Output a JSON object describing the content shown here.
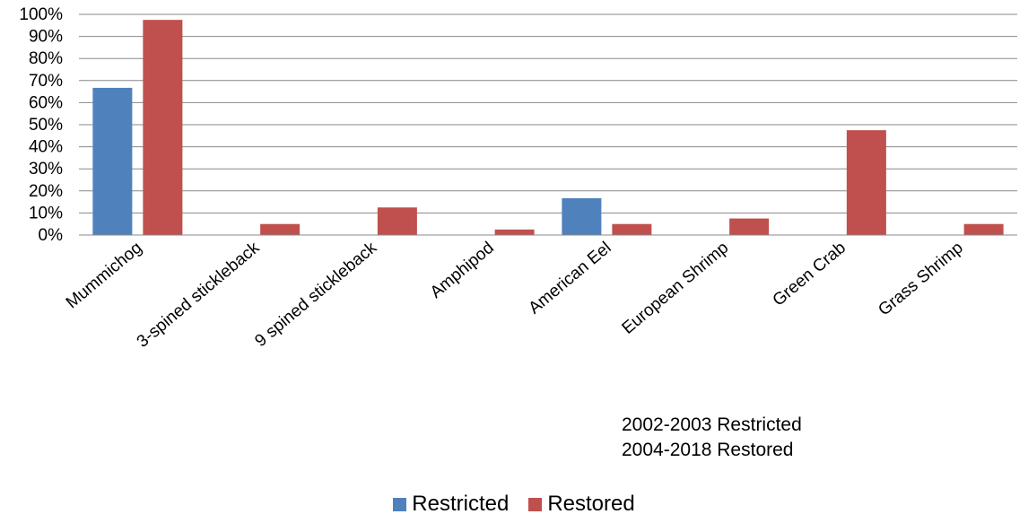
{
  "chart_data": {
    "type": "bar",
    "categories": [
      "Mummichog",
      "3-spined stickleback",
      "9 spined stickleback",
      "Amphipod",
      "American Eel",
      "European Shrimp",
      "Green Crab",
      "Grass Shrimp"
    ],
    "series": [
      {
        "name": "Restricted",
        "color": "#4F81BD",
        "values": [
          66.7,
          0,
          0,
          0,
          16.7,
          0,
          0,
          0
        ]
      },
      {
        "name": "Restored",
        "color": "#C0504D",
        "values": [
          97.5,
          5,
          12.5,
          2.5,
          5,
          7.5,
          47.5,
          5
        ]
      }
    ],
    "y_ticks": [
      "0%",
      "10%",
      "20%",
      "30%",
      "40%",
      "50%",
      "60%",
      "70%",
      "80%",
      "90%",
      "100%"
    ],
    "ylim": [
      0,
      100
    ],
    "grid": true,
    "legend": "bottom",
    "annotations": [
      "2002-2003 Restricted",
      "2004-2018 Restored"
    ]
  }
}
